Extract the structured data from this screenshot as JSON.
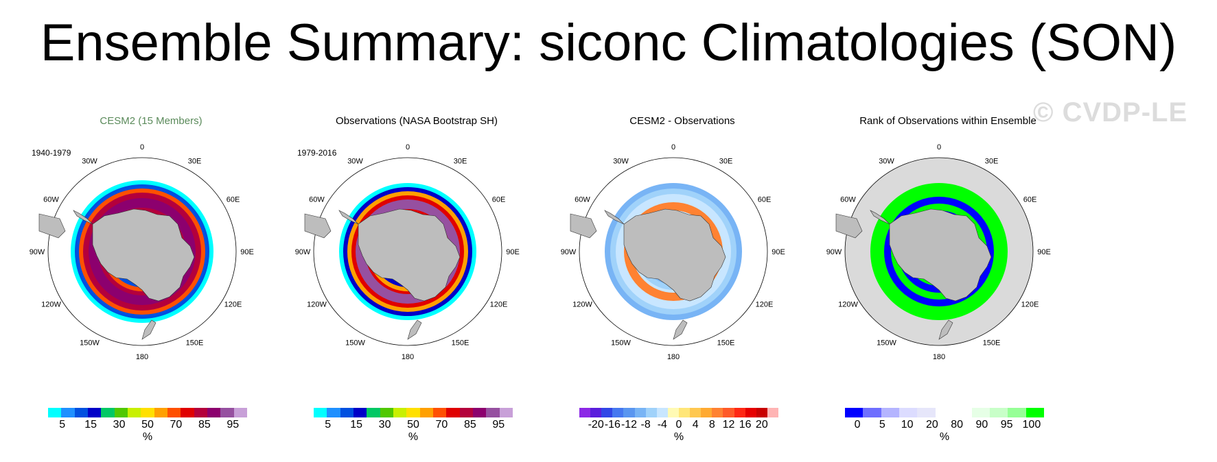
{
  "title": "Ensemble Summary: siconc Climatologies (SON)",
  "watermark": "© CVDP-LE",
  "lon_labels": [
    "0",
    "30E",
    "60E",
    "90E",
    "120E",
    "150E",
    "180",
    "150W",
    "120W",
    "90W",
    "60W",
    "30W"
  ],
  "panels": [
    {
      "title": "CESM2 (15 Members)",
      "title_color": "#5a8a5a",
      "period": "1940-1979",
      "unit": "%",
      "ticks": [
        "5",
        "15",
        "30",
        "50",
        "70",
        "85",
        "95"
      ],
      "colors": [
        "#00ffff",
        "#1e90ff",
        "#0050e0",
        "#0000c8",
        "#00c864",
        "#50c800",
        "#c8f000",
        "#ffe000",
        "#ffa000",
        "#ff5000",
        "#e00000",
        "#b4003c",
        "#8c006e",
        "#9650a0",
        "#c8a0d8"
      ]
    },
    {
      "title": "Observations (NASA Bootstrap SH)",
      "title_color": "#000000",
      "period": "1979-2016",
      "unit": "%",
      "ticks": [
        "5",
        "15",
        "30",
        "50",
        "70",
        "85",
        "95"
      ],
      "colors": [
        "#00ffff",
        "#1e90ff",
        "#0050e0",
        "#0000c8",
        "#00c864",
        "#50c800",
        "#c8f000",
        "#ffe000",
        "#ffa000",
        "#ff5000",
        "#e00000",
        "#b4003c",
        "#8c006e",
        "#9650a0",
        "#c8a0d8"
      ]
    },
    {
      "title": "CESM2 - Observations",
      "title_color": "#000000",
      "period": "",
      "unit": "%",
      "ticks": [
        "-20",
        "-16",
        "-12",
        "-8",
        "-4",
        "0",
        "4",
        "8",
        "12",
        "16",
        "20"
      ],
      "colors": [
        "#8c28e6",
        "#5a1edc",
        "#3246e6",
        "#4678f0",
        "#5a96f0",
        "#78b4f5",
        "#a0d2fa",
        "#c8e6ff",
        "#fffab4",
        "#ffe678",
        "#ffc850",
        "#ffaa32",
        "#ff8232",
        "#ff5a28",
        "#ff2814",
        "#e60000",
        "#c80000",
        "#ffb4b4"
      ]
    },
    {
      "title": "Rank of Observations within Ensemble",
      "title_color": "#000000",
      "period": "",
      "unit": "%",
      "ticks": [
        "0",
        "5",
        "10",
        "20",
        "80",
        "90",
        "95",
        "100"
      ],
      "colors": [
        "#0000ff",
        "#6e6eff",
        "#b4b4ff",
        "#dcdcff",
        "#e6e6fa",
        "#ffffff",
        "#ffffff",
        "#e6ffe6",
        "#c8ffc8",
        "#96ff96",
        "#00ff00"
      ]
    }
  ],
  "colors": {
    "land": "#bdbdbd",
    "background_ocean": "#ffffff",
    "rank_background": "#dadada"
  }
}
